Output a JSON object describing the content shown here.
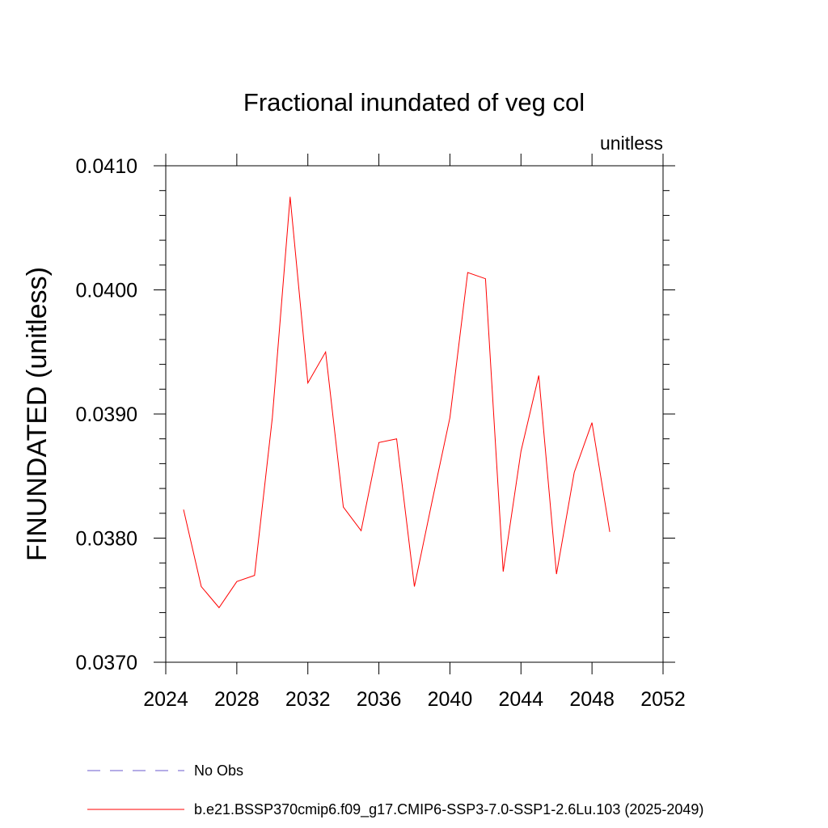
{
  "chart_data": {
    "type": "line",
    "title": "Fractional inundated of veg col",
    "units_label": "unitless",
    "ylabel": "FINUNDATED  (unitless)",
    "xlabel": "",
    "xlim": [
      2024,
      2052
    ],
    "ylim": [
      0.037,
      0.041
    ],
    "x_ticks": [
      "2024",
      "2028",
      "2032",
      "2036",
      "2040",
      "2044",
      "2048",
      "2052"
    ],
    "y_ticks": [
      "0.0370",
      "0.0380",
      "0.0390",
      "0.0400",
      "0.0410"
    ],
    "grid": false,
    "legend_position": "bottom",
    "series": [
      {
        "name": "b.e21.BSSP370cmip6.f09_g17.CMIP6-SSP3-7.0-SSP1-2.6Lu.103 (2025-2049)",
        "color": "#ff0000",
        "x": [
          2025,
          2026,
          2027,
          2028,
          2029,
          2030,
          2031,
          2032,
          2033,
          2034,
          2035,
          2036,
          2037,
          2038,
          2039,
          2040,
          2041,
          2042,
          2043,
          2044,
          2045,
          2046,
          2047,
          2048,
          2049
        ],
        "values": [
          0.03823,
          0.03761,
          0.03744,
          0.03765,
          0.0377,
          0.03897,
          0.04075,
          0.03925,
          0.0395,
          0.03825,
          0.03806,
          0.03877,
          0.0388,
          0.03761,
          0.0383,
          0.03897,
          0.04014,
          0.04009,
          0.03773,
          0.0387,
          0.03931,
          0.03771,
          0.03853,
          0.03893,
          0.03805
        ]
      }
    ],
    "legend": [
      {
        "label": "No Obs",
        "color": "#6a5acd",
        "style": "dashed"
      },
      {
        "label": "b.e21.BSSP370cmip6.f09_g17.CMIP6-SSP3-7.0-SSP1-2.6Lu.103 (2025-2049)",
        "color": "#ff0000",
        "style": "solid"
      }
    ]
  }
}
